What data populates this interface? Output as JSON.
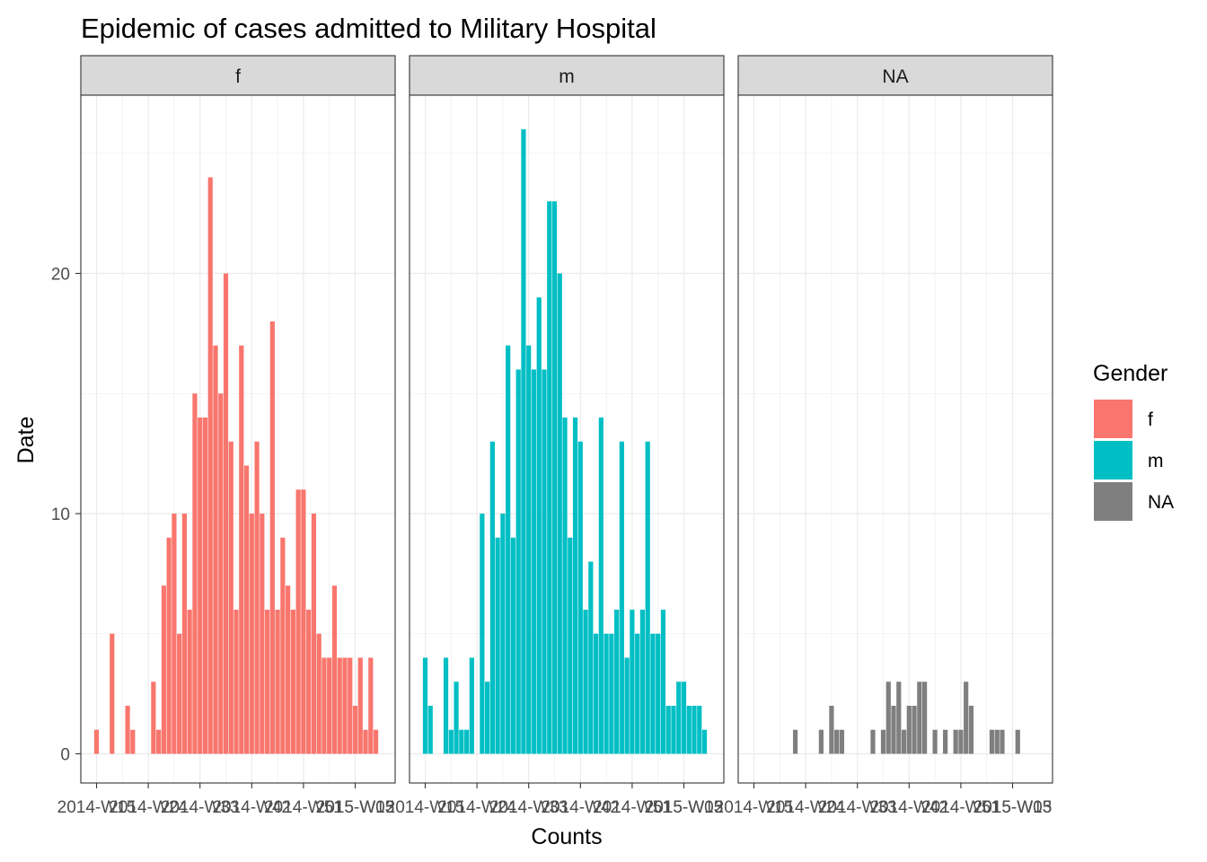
{
  "chart_data": {
    "type": "bar",
    "title": "Epidemic of cases admitted to Military Hospital",
    "xlabel": "Counts",
    "ylabel": "Date",
    "ylim": [
      -1.2,
      26.7
    ],
    "y_ticks": [
      0,
      10,
      20
    ],
    "x_tick_labels": [
      "2014-W15",
      "2014-W24",
      "2014-W33",
      "2014-W42",
      "2014-W51",
      "2015-W13"
    ],
    "x_tick_labels_rendered": [
      "2014-W15",
      "2014-W24",
      "2014-W33",
      "2014-W42",
      "2014-W51",
      "2015-W05",
      "2015-W13"
    ],
    "legend": {
      "title": "Gender",
      "position": "right",
      "entries": [
        {
          "label": "f",
          "color": "#F8766D"
        },
        {
          "label": "m",
          "color": "#00BFC4"
        },
        {
          "label": "NA",
          "color": "#7F7F7F"
        }
      ]
    },
    "grid": true,
    "facets": [
      {
        "label": "f",
        "color": "#F8766D",
        "values": [
          1,
          0,
          0,
          5,
          0,
          0,
          2,
          1,
          0,
          0,
          0,
          3,
          1,
          7,
          9,
          10,
          5,
          10,
          6,
          15,
          14,
          14,
          24,
          17,
          15,
          20,
          13,
          6,
          17,
          12,
          10,
          13,
          10,
          6,
          18,
          6,
          9,
          7,
          6,
          11,
          11,
          6,
          10,
          5,
          4,
          4,
          7,
          4,
          4,
          4,
          2,
          4,
          1,
          4,
          1
        ]
      },
      {
        "label": "m",
        "color": "#00BFC4",
        "values": [
          4,
          2,
          0,
          0,
          4,
          1,
          3,
          1,
          1,
          4,
          0,
          10,
          3,
          13,
          9,
          10,
          17,
          9,
          16,
          26,
          17,
          16,
          19,
          16,
          23,
          23,
          20,
          14,
          9,
          14,
          13,
          6,
          8,
          5,
          14,
          5,
          5,
          6,
          13,
          4,
          6,
          5,
          6,
          13,
          5,
          5,
          6,
          2,
          2,
          3,
          3,
          2,
          2,
          2,
          1
        ]
      },
      {
        "label": "NA",
        "color": "#7F7F7F",
        "values": [
          0,
          0,
          0,
          0,
          0,
          0,
          0,
          0,
          1,
          0,
          0,
          0,
          0,
          1,
          0,
          2,
          1,
          1,
          0,
          0,
          0,
          0,
          0,
          1,
          0,
          1,
          3,
          2,
          3,
          1,
          2,
          2,
          3,
          3,
          0,
          1,
          0,
          1,
          0,
          1,
          1,
          3,
          2,
          0,
          0,
          0,
          1,
          1,
          1,
          0,
          0,
          1,
          0,
          0,
          0
        ]
      }
    ]
  }
}
